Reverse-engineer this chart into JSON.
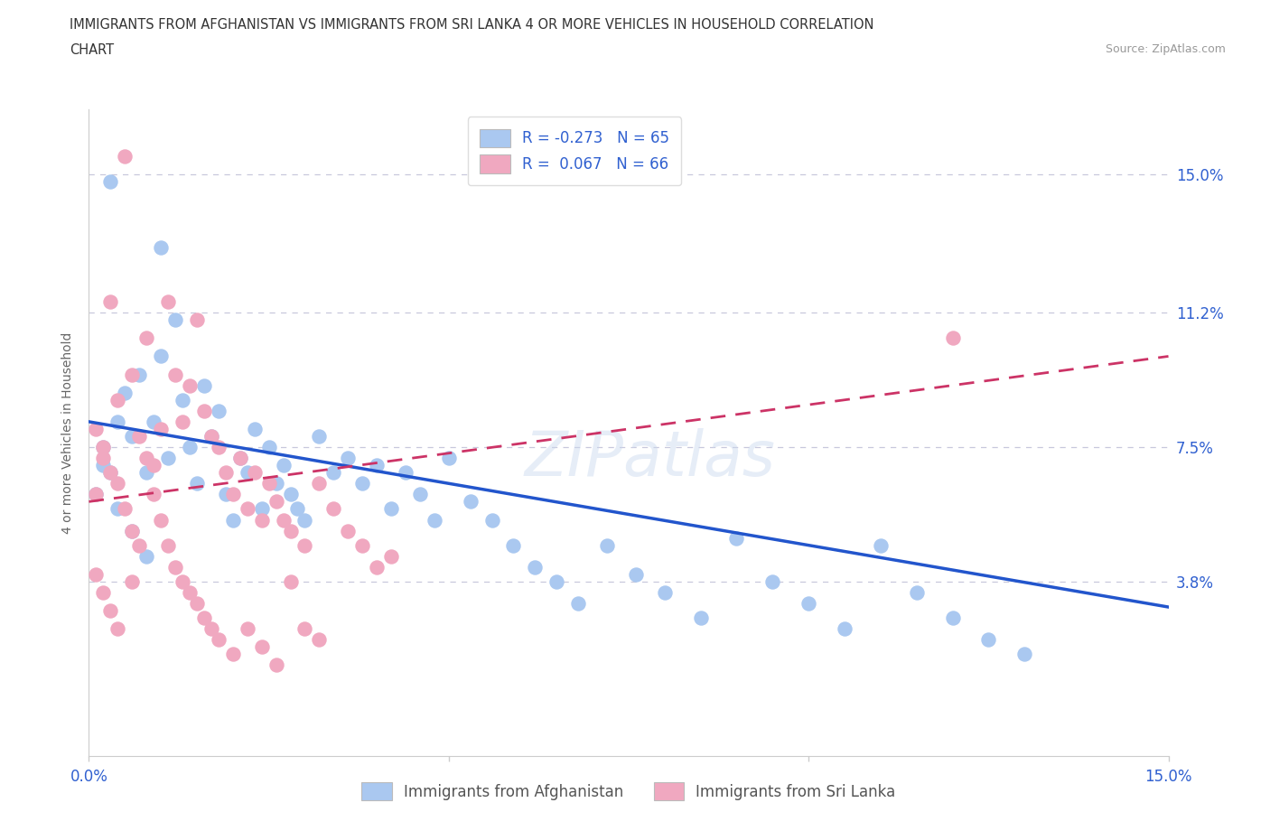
{
  "title_line1": "IMMIGRANTS FROM AFGHANISTAN VS IMMIGRANTS FROM SRI LANKA 4 OR MORE VEHICLES IN HOUSEHOLD CORRELATION",
  "title_line2": "CHART",
  "source": "Source: ZipAtlas.com",
  "watermark": "ZIPatlas",
  "ylabel": "4 or more Vehicles in Household",
  "ytick_values": [
    0.038,
    0.075,
    0.112,
    0.15
  ],
  "ytick_labels": [
    "3.8%",
    "7.5%",
    "11.2%",
    "15.0%"
  ],
  "xlim": [
    0.0,
    0.15
  ],
  "ylim": [
    -0.01,
    0.168
  ],
  "legend1_label": "R = -0.273   N = 65",
  "legend2_label": "R =  0.067   N = 66",
  "legend_bottom_label1": "Immigrants from Afghanistan",
  "legend_bottom_label2": "Immigrants from Sri Lanka",
  "afghanistan_color": "#aac8f0",
  "srilanka_color": "#f0a8c0",
  "afghanistan_line_color": "#2255cc",
  "srilanka_line_color": "#cc3366",
  "background_color": "#ffffff",
  "grid_color": "#c8c8dc",
  "afg_line_y0": 0.082,
  "afg_line_y1": 0.031,
  "slk_line_y0": 0.06,
  "slk_line_y1": 0.1,
  "afg_x": [
    0.002,
    0.003,
    0.004,
    0.005,
    0.006,
    0.007,
    0.008,
    0.009,
    0.01,
    0.011,
    0.012,
    0.013,
    0.014,
    0.015,
    0.016,
    0.017,
    0.018,
    0.019,
    0.02,
    0.021,
    0.022,
    0.023,
    0.024,
    0.025,
    0.026,
    0.027,
    0.028,
    0.029,
    0.03,
    0.032,
    0.034,
    0.036,
    0.038,
    0.04,
    0.042,
    0.044,
    0.046,
    0.048,
    0.05,
    0.053,
    0.056,
    0.059,
    0.062,
    0.065,
    0.068,
    0.072,
    0.076,
    0.08,
    0.085,
    0.09,
    0.095,
    0.1,
    0.105,
    0.11,
    0.115,
    0.12,
    0.125,
    0.13,
    0.001,
    0.002,
    0.003,
    0.004,
    0.006,
    0.008,
    0.01
  ],
  "afg_y": [
    0.075,
    0.148,
    0.082,
    0.09,
    0.078,
    0.095,
    0.068,
    0.082,
    0.13,
    0.072,
    0.11,
    0.088,
    0.075,
    0.065,
    0.092,
    0.078,
    0.085,
    0.062,
    0.055,
    0.072,
    0.068,
    0.08,
    0.058,
    0.075,
    0.065,
    0.07,
    0.062,
    0.058,
    0.055,
    0.078,
    0.068,
    0.072,
    0.065,
    0.07,
    0.058,
    0.068,
    0.062,
    0.055,
    0.072,
    0.06,
    0.055,
    0.048,
    0.042,
    0.038,
    0.032,
    0.048,
    0.04,
    0.035,
    0.028,
    0.05,
    0.038,
    0.032,
    0.025,
    0.048,
    0.035,
    0.028,
    0.022,
    0.018,
    0.062,
    0.07,
    0.068,
    0.058,
    0.052,
    0.045,
    0.1
  ],
  "slk_x": [
    0.001,
    0.002,
    0.003,
    0.004,
    0.005,
    0.006,
    0.007,
    0.008,
    0.009,
    0.01,
    0.011,
    0.012,
    0.013,
    0.014,
    0.015,
    0.016,
    0.017,
    0.018,
    0.019,
    0.02,
    0.021,
    0.022,
    0.023,
    0.024,
    0.025,
    0.026,
    0.027,
    0.028,
    0.03,
    0.032,
    0.034,
    0.036,
    0.038,
    0.04,
    0.042,
    0.001,
    0.002,
    0.003,
    0.004,
    0.005,
    0.006,
    0.007,
    0.008,
    0.009,
    0.01,
    0.011,
    0.012,
    0.013,
    0.014,
    0.015,
    0.016,
    0.017,
    0.018,
    0.02,
    0.022,
    0.024,
    0.026,
    0.028,
    0.03,
    0.032,
    0.001,
    0.002,
    0.003,
    0.004,
    0.006,
    0.12
  ],
  "slk_y": [
    0.062,
    0.075,
    0.115,
    0.088,
    0.155,
    0.095,
    0.078,
    0.105,
    0.07,
    0.08,
    0.115,
    0.095,
    0.082,
    0.092,
    0.11,
    0.085,
    0.078,
    0.075,
    0.068,
    0.062,
    0.072,
    0.058,
    0.068,
    0.055,
    0.065,
    0.06,
    0.055,
    0.052,
    0.048,
    0.065,
    0.058,
    0.052,
    0.048,
    0.042,
    0.045,
    0.08,
    0.072,
    0.068,
    0.065,
    0.058,
    0.052,
    0.048,
    0.072,
    0.062,
    0.055,
    0.048,
    0.042,
    0.038,
    0.035,
    0.032,
    0.028,
    0.025,
    0.022,
    0.018,
    0.025,
    0.02,
    0.015,
    0.038,
    0.025,
    0.022,
    0.04,
    0.035,
    0.03,
    0.025,
    0.038,
    0.105
  ]
}
